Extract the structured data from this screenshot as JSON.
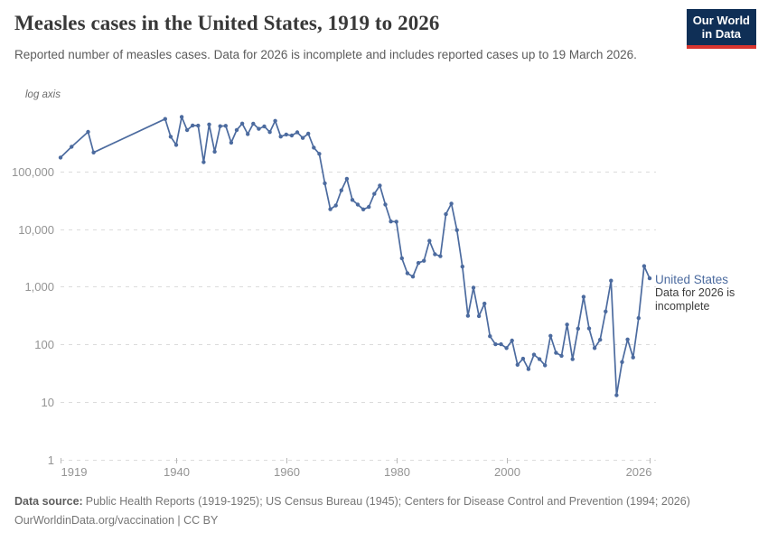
{
  "header": {
    "title": "Measles cases in the United States, 1919 to 2026",
    "subtitle": "Reported number of measles cases. Data for 2026 is incomplete and includes reported cases up to 19 March 2026."
  },
  "logo": {
    "line1": "Our World",
    "line2": "in Data",
    "bg_color": "#0f2f56",
    "accent_color": "#d8352f"
  },
  "chart_data": {
    "type": "line",
    "title": "Measles cases in the United States, 1919 to 2026",
    "log_scale": true,
    "axis_note": "log axis",
    "grid": true,
    "xlim": [
      1919,
      2026
    ],
    "ylim": [
      1,
      1000000
    ],
    "x_ticks": [
      {
        "year": 1919,
        "label": "1919",
        "align": "start"
      },
      {
        "year": 1940,
        "label": "1940",
        "align": "middle"
      },
      {
        "year": 1960,
        "label": "1960",
        "align": "middle"
      },
      {
        "year": 1980,
        "label": "1980",
        "align": "middle"
      },
      {
        "year": 2000,
        "label": "2000",
        "align": "middle"
      },
      {
        "year": 2026,
        "label": "2026",
        "align": "end"
      }
    ],
    "y_ticks": [
      {
        "value": 100000,
        "label": "100,000"
      },
      {
        "value": 10000,
        "label": "10,000"
      },
      {
        "value": 1000,
        "label": "1,000"
      },
      {
        "value": 100,
        "label": "100"
      },
      {
        "value": 10,
        "label": "10"
      },
      {
        "value": 1,
        "label": "1"
      }
    ],
    "series": [
      {
        "name": "United States",
        "color": "#4c6b9f",
        "annotation": "Data for 2026 is incomplete",
        "points": [
          [
            1919,
            176000
          ],
          [
            1921,
            270000
          ],
          [
            1924,
            490000
          ],
          [
            1925,
            215000
          ],
          [
            1938,
            822811
          ],
          [
            1939,
            404657
          ],
          [
            1940,
            291162
          ],
          [
            1941,
            894134
          ],
          [
            1942,
            527347
          ],
          [
            1943,
            633627
          ],
          [
            1944,
            630291
          ],
          [
            1945,
            146013
          ],
          [
            1946,
            659843
          ],
          [
            1947,
            222375
          ],
          [
            1948,
            615104
          ],
          [
            1949,
            625281
          ],
          [
            1950,
            319124
          ],
          [
            1951,
            530118
          ],
          [
            1952,
            683077
          ],
          [
            1953,
            449146
          ],
          [
            1954,
            682720
          ],
          [
            1955,
            555156
          ],
          [
            1956,
            611936
          ],
          [
            1957,
            486799
          ],
          [
            1958,
            763094
          ],
          [
            1959,
            406162
          ],
          [
            1960,
            441703
          ],
          [
            1961,
            423919
          ],
          [
            1962,
            481530
          ],
          [
            1963,
            385156
          ],
          [
            1964,
            458083
          ],
          [
            1965,
            261904
          ],
          [
            1966,
            204136
          ],
          [
            1967,
            62705
          ],
          [
            1968,
            22231
          ],
          [
            1969,
            25826
          ],
          [
            1970,
            47351
          ],
          [
            1971,
            75290
          ],
          [
            1972,
            32275
          ],
          [
            1973,
            26690
          ],
          [
            1974,
            22094
          ],
          [
            1975,
            24374
          ],
          [
            1976,
            41126
          ],
          [
            1977,
            57345
          ],
          [
            1978,
            26871
          ],
          [
            1979,
            13597
          ],
          [
            1980,
            13506
          ],
          [
            1981,
            3124
          ],
          [
            1982,
            1714
          ],
          [
            1983,
            1497
          ],
          [
            1984,
            2587
          ],
          [
            1985,
            2822
          ],
          [
            1986,
            6282
          ],
          [
            1987,
            3655
          ],
          [
            1988,
            3396
          ],
          [
            1989,
            18193
          ],
          [
            1990,
            27786
          ],
          [
            1991,
            9643
          ],
          [
            1992,
            2237
          ],
          [
            1993,
            312
          ],
          [
            1994,
            963
          ],
          [
            1995,
            309
          ],
          [
            1996,
            508
          ],
          [
            1997,
            138
          ],
          [
            1998,
            100
          ],
          [
            1999,
            100
          ],
          [
            2000,
            86
          ],
          [
            2001,
            116
          ],
          [
            2002,
            44
          ],
          [
            2003,
            56
          ],
          [
            2004,
            37
          ],
          [
            2005,
            66
          ],
          [
            2006,
            55
          ],
          [
            2007,
            43
          ],
          [
            2008,
            140
          ],
          [
            2009,
            71
          ],
          [
            2010,
            63
          ],
          [
            2011,
            220
          ],
          [
            2012,
            55
          ],
          [
            2013,
            187
          ],
          [
            2014,
            667
          ],
          [
            2015,
            188
          ],
          [
            2016,
            86
          ],
          [
            2017,
            120
          ],
          [
            2018,
            372
          ],
          [
            2019,
            1274
          ],
          [
            2020,
            13
          ],
          [
            2021,
            49
          ],
          [
            2022,
            121
          ],
          [
            2023,
            59
          ],
          [
            2024,
            285
          ],
          [
            2025,
            2280
          ],
          [
            2026,
            1400
          ]
        ]
      }
    ]
  },
  "footer": {
    "source_label": "Data source:",
    "sources": "Public Health Reports (1919-1925); US Census Bureau (1945); Centers for Disease Control and Prevention (1994; 2026)",
    "license_line": "OurWorldinData.org/vaccination | CC BY"
  }
}
